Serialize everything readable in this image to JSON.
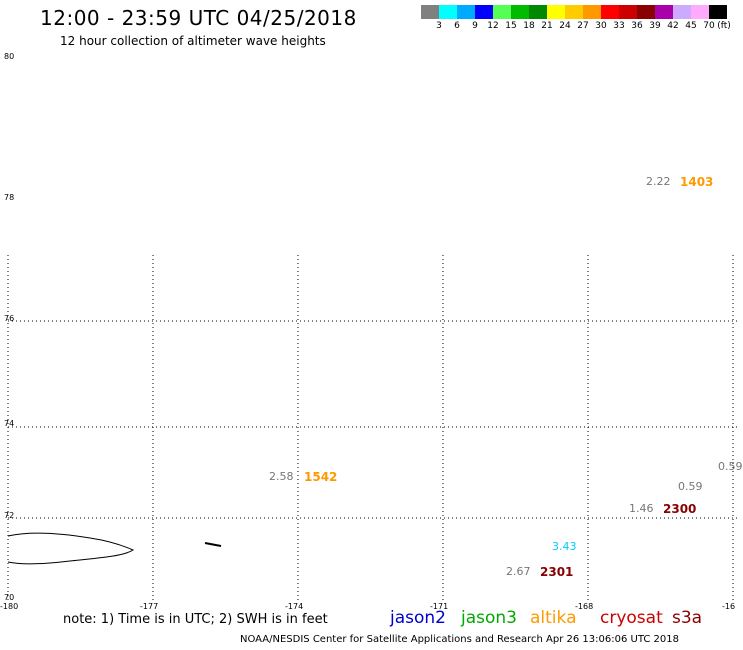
{
  "header": {
    "title": "12:00 - 23:59 UTC 04/25/2018",
    "subtitle": "12 hour collection of altimeter wave heights"
  },
  "colorbar": {
    "unit": "(ft)",
    "labels": [
      "3",
      "6",
      "9",
      "12",
      "15",
      "18",
      "21",
      "24",
      "27",
      "30",
      "33",
      "36",
      "39",
      "42",
      "45",
      "70"
    ],
    "colors": [
      "#808080",
      "#00ffff",
      "#00aaff",
      "#0000ff",
      "#55ff55",
      "#00bb00",
      "#008800",
      "#ffff00",
      "#ffcc00",
      "#ff9900",
      "#ff0000",
      "#cc0000",
      "#880000",
      "#aa00aa",
      "#ccaaff",
      "#ffaaff",
      "#000000"
    ]
  },
  "axes": {
    "lat_labels": [
      "80",
      "78",
      "76",
      "74",
      "72",
      "70"
    ],
    "lon_labels": [
      "-180",
      "-177",
      "-174",
      "-171",
      "-168",
      "-16"
    ]
  },
  "observations": [
    {
      "swh": "2.22",
      "time": "1403",
      "swh_color": "#777777",
      "time_color": "#ff9900"
    },
    {
      "swh": "2.58",
      "time": "1542",
      "swh_color": "#777777",
      "time_color": "#ff9900"
    },
    {
      "swh": "0.59",
      "time": "",
      "swh_color": "#777777",
      "time_color": ""
    },
    {
      "swh": "0.59",
      "time": "",
      "swh_color": "#777777",
      "time_color": ""
    },
    {
      "swh": "1.46",
      "time": "2300",
      "swh_color": "#777777",
      "time_color": "#880000"
    },
    {
      "swh": "3.43",
      "time": "",
      "swh_color": "#00ccff",
      "time_color": ""
    },
    {
      "swh": "2.67",
      "time": "2301",
      "swh_color": "#777777",
      "time_color": "#880000"
    }
  ],
  "footer": {
    "note": "note: 1) Time is in UTC; 2) SWH is in feet",
    "satellites": [
      {
        "name": "jason2",
        "color": "#0000cc"
      },
      {
        "name": "jason3",
        "color": "#00aa00"
      },
      {
        "name": "altika",
        "color": "#ff9900"
      },
      {
        "name": "cryosat",
        "color": "#cc0000"
      },
      {
        "name": "s3a",
        "color": "#880000"
      }
    ],
    "credit": "NOAA/NESDIS Center for Satellite Applications and Research    Apr 26 13:06:06 UTC 2018"
  }
}
